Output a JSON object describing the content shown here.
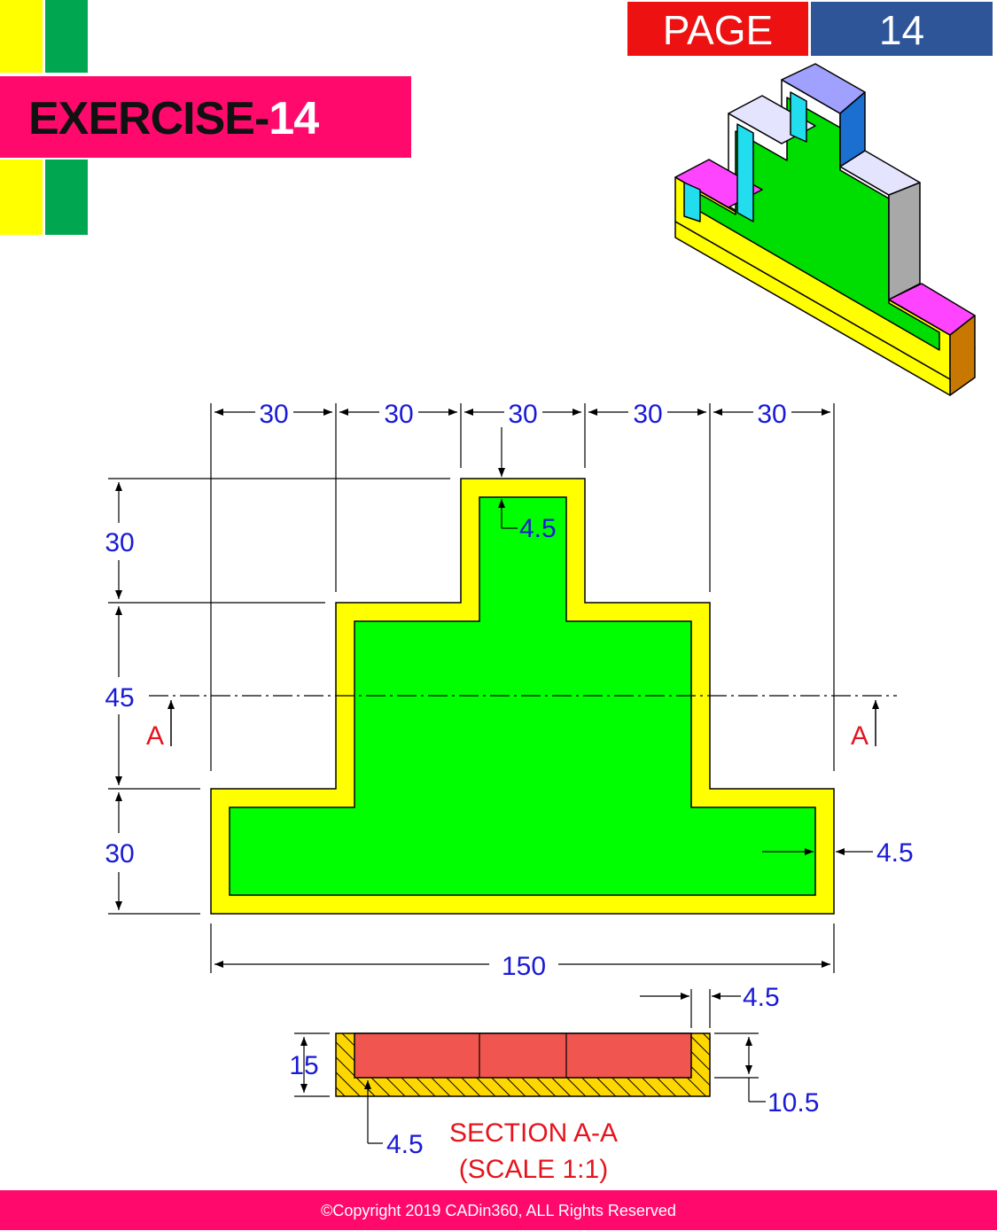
{
  "header": {
    "exercise_prefix": "EXERCISE-",
    "exercise_number": "14",
    "page_label": "PAGE",
    "page_number": "14"
  },
  "colors": {
    "banner_pink": "#ff0a6c",
    "page_red": "#ee1111",
    "page_blue": "#2d5597",
    "block_yellow": "#ffff00",
    "block_green": "#00a650",
    "profile_wall": "#ffff00",
    "profile_fill": "#00ff00",
    "section_fill": "#f0564f",
    "dimension_text": "#1a1ad6",
    "section_text": "#e4141e"
  },
  "drawing": {
    "top_widths": [
      "30",
      "30",
      "30",
      "30",
      "30"
    ],
    "left_heights": [
      "30",
      "45",
      "30"
    ],
    "overall_width": "150",
    "wall_top": "4.5",
    "wall_right": "4.5",
    "section_marker_left": "A",
    "section_marker_right": "A"
  },
  "section": {
    "title": "SECTION A-A",
    "scale": "(SCALE 1:1)",
    "height": "15",
    "inner_depth": "10.5",
    "wall_right": "4.5",
    "base_thickness": "4.5"
  },
  "footer": {
    "copyright": "©Copyright 2019 CADin360, ALL Rights Reserved"
  }
}
